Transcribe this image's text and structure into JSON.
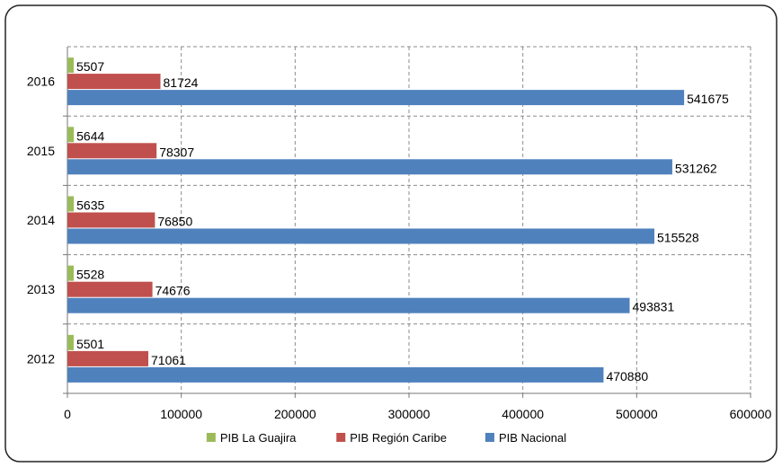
{
  "chart_data": {
    "type": "bar",
    "orientation": "horizontal",
    "categories": [
      "2012",
      "2013",
      "2014",
      "2015",
      "2016"
    ],
    "series": [
      {
        "name": "PIB La Guajira",
        "color": "#9BBB59",
        "values": [
          5501,
          5528,
          5635,
          5644,
          5507
        ]
      },
      {
        "name": "PIB Región Caribe",
        "color": "#C0504D",
        "values": [
          71061,
          74676,
          76850,
          78307,
          81724
        ]
      },
      {
        "name": "PIB Nacional",
        "color": "#4F81BD",
        "values": [
          470880,
          493831,
          515528,
          531262,
          541675
        ]
      }
    ],
    "xlim": [
      0,
      600000
    ],
    "xticks": [
      "0",
      "100000",
      "200000",
      "300000",
      "400000",
      "500000",
      "600000"
    ],
    "grid": true,
    "gridline_style": "dashed",
    "legend_position": "bottom",
    "title": "",
    "xlabel": "",
    "ylabel": ""
  }
}
